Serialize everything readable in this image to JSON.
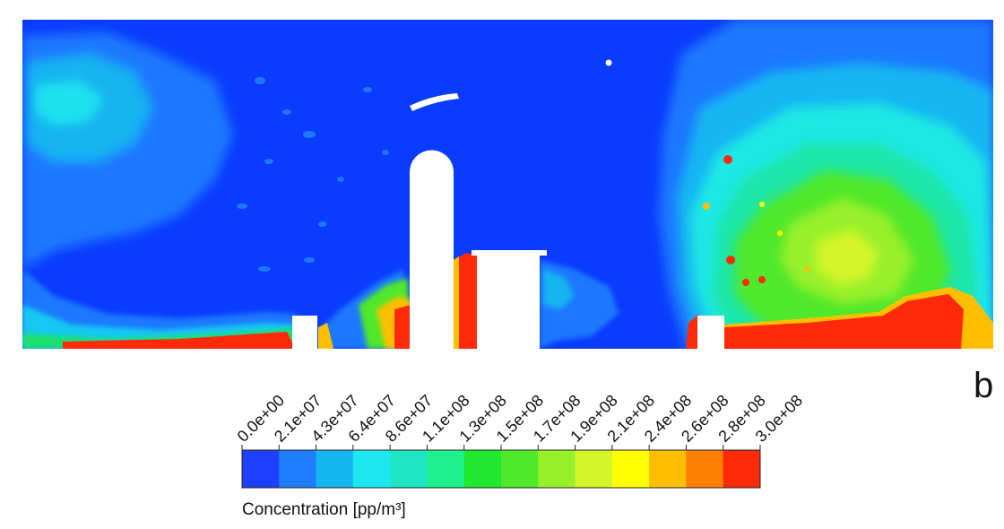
{
  "chart_data": {
    "type": "heatmap",
    "panel_label": "b",
    "colorbar": {
      "title": "Concentration [pp/m³]",
      "tick_labels": [
        "0.0e+00",
        "2.1e+07",
        "4.3e+07",
        "6.4e+07",
        "8.6e+07",
        "1.1e+08",
        "1.3e+08",
        "1.5e+08",
        "1.7e+08",
        "1.9e+08",
        "2.1e+08",
        "2.4e+08",
        "2.6e+08",
        "2.8e+08",
        "3.0e+08"
      ],
      "range": [
        0,
        300000000
      ],
      "colors": [
        "#1f3fff",
        "#1f7dff",
        "#14b6f2",
        "#1de8f2",
        "#1fe6c2",
        "#1ff08e",
        "#1fe82e",
        "#4fe82a",
        "#98f02a",
        "#d4f52a",
        "#ffff00",
        "#ffbf00",
        "#ff7f00",
        "#ff2a0a"
      ]
    }
  }
}
